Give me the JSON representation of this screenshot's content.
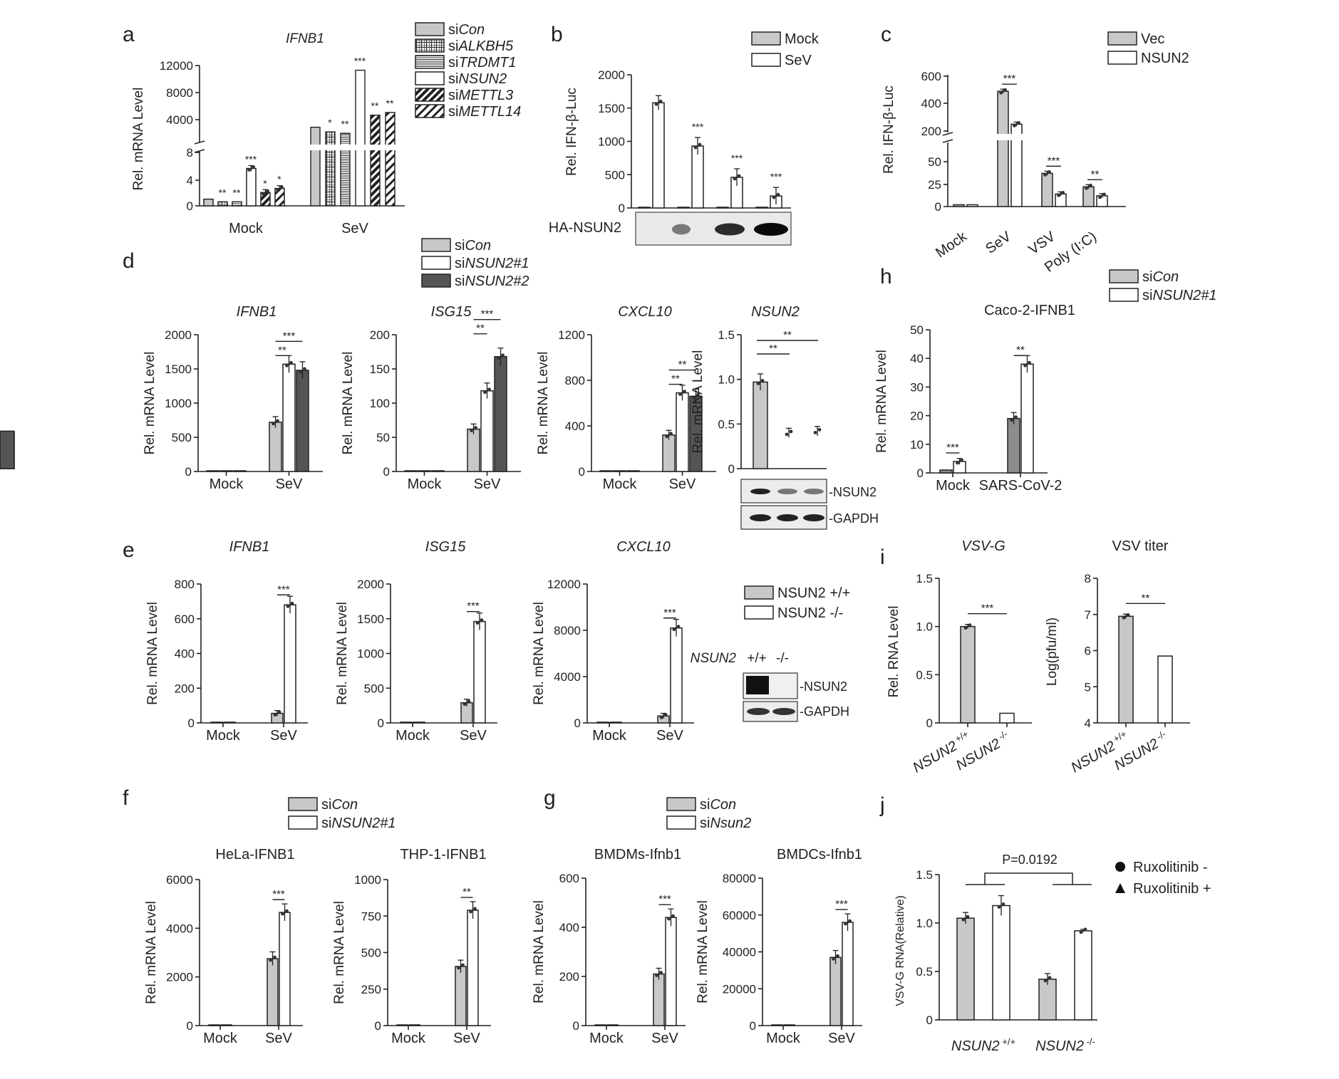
{
  "figure": {
    "panels": [
      "a",
      "b",
      "c",
      "d",
      "e",
      "f",
      "g",
      "h",
      "i",
      "j"
    ]
  },
  "chart_data": [
    {
      "id": "a",
      "type": "bar",
      "title": "IFNB1",
      "ylabel": "Rel. mRNA Level",
      "categories": [
        "Mock",
        "SeV"
      ],
      "broken_axis": true,
      "lower_ticks": [
        "0",
        "4",
        "8"
      ],
      "upper_ticks": [
        "4000",
        "8000",
        "12000"
      ],
      "legend": [
        "siCon",
        "siALKBH5",
        "siTRDMT1",
        "siNSUN2",
        "siMETTL3",
        "siMETTL14"
      ],
      "series": [
        {
          "name": "siCon",
          "values": [
            1,
            2800
          ]
        },
        {
          "name": "siALKBH5",
          "values": [
            0.6,
            2100
          ]
        },
        {
          "name": "siTRDMT1",
          "values": [
            0.6,
            1900
          ]
        },
        {
          "name": "siNSUN2",
          "values": [
            5.6,
            11300
          ]
        },
        {
          "name": "siMETTL3",
          "values": [
            2,
            4600
          ]
        },
        {
          "name": "siMETTL14",
          "values": [
            2.6,
            5000
          ]
        }
      ],
      "significance": [
        [
          "",
          "**",
          "**",
          "***",
          "*",
          "*"
        ],
        [
          "",
          "*",
          "**",
          "***",
          "**",
          "**"
        ]
      ]
    },
    {
      "id": "b",
      "type": "bar",
      "ylabel": "Rel. IFN-β-Luc",
      "ylim": [
        0,
        2000
      ],
      "ticks": [
        "0",
        "500",
        "1000",
        "1500",
        "2000"
      ],
      "legend": [
        "Mock",
        "SeV"
      ],
      "blot_label": "HA-NSUN2",
      "series": [
        {
          "name": "Mock",
          "values": [
            10,
            10,
            10,
            10
          ]
        },
        {
          "name": "SeV",
          "values": [
            1580,
            930,
            460,
            180
          ]
        }
      ],
      "significance": [
        "",
        "***",
        "***",
        "***"
      ]
    },
    {
      "id": "c",
      "type": "bar",
      "ylabel": "Rel. IFN-β-Luc",
      "broken_axis": true,
      "categories": [
        "Mock",
        "SeV",
        "VSV",
        "Poly (I:C)"
      ],
      "lower_ticks": [
        "0",
        "25",
        "50"
      ],
      "upper_ticks": [
        "200",
        "400",
        "600"
      ],
      "legend": [
        "Vec",
        "NSUN2"
      ],
      "series": [
        {
          "name": "Vec",
          "values": [
            2,
            490,
            37,
            22
          ]
        },
        {
          "name": "NSUN2",
          "values": [
            2,
            250,
            14,
            12
          ]
        }
      ],
      "significance": [
        "",
        "***",
        "***",
        "**"
      ]
    },
    {
      "id": "d",
      "type": "bar",
      "legend": [
        "siCon",
        "siNSUN2#1",
        "siNSUN2#2"
      ],
      "subplots": [
        {
          "title": "IFNB1",
          "ylabel": "Rel. mRNA Level",
          "categories": [
            "Mock",
            "SeV"
          ],
          "ylim": [
            0,
            2000
          ],
          "ticks": [
            "0",
            "500",
            "1000",
            "1500",
            "2000"
          ],
          "values": [
            [
              1,
              1,
              1
            ],
            [
              720,
              1570,
              1480
            ]
          ],
          "sig": [
            "**",
            "***"
          ]
        },
        {
          "title": "ISG15",
          "ylabel": "Rel. mRNA Level",
          "categories": [
            "Mock",
            "SeV"
          ],
          "ylim": [
            0,
            200
          ],
          "ticks": [
            "0",
            "50",
            "100",
            "150",
            "200"
          ],
          "values": [
            [
              1,
              1,
              1
            ],
            [
              62,
              118,
              168
            ]
          ],
          "sig": [
            "**",
            "***"
          ]
        },
        {
          "title": "CXCL10",
          "ylabel": "Rel. mRNA Level",
          "categories": [
            "Mock",
            "SeV"
          ],
          "ylim": [
            0,
            1200
          ],
          "ticks": [
            "0",
            "400",
            "800",
            "1200"
          ],
          "values": [
            [
              1,
              1,
              1
            ],
            [
              320,
              690,
              660
            ]
          ],
          "sig": [
            "**",
            "**"
          ]
        },
        {
          "title": "NSUN2",
          "ylabel": "Rel. mRNA Level",
          "categories": [],
          "ylim": [
            0,
            1.5
          ],
          "ticks": [
            "0",
            "0.5",
            "1.0",
            "1.5"
          ],
          "values": [
            [
              0.97,
              0.4,
              0.42
            ]
          ],
          "sig": [
            "**",
            "**"
          ],
          "blot": [
            "-NSUN2",
            "-GAPDH"
          ]
        }
      ]
    },
    {
      "id": "e",
      "type": "bar",
      "legend": [
        "NSUN2 +/+",
        "NSUN2 -/-"
      ],
      "blot_header": [
        "NSUN2",
        "+/+",
        "-/-"
      ],
      "blot": [
        "-NSUN2",
        "-GAPDH"
      ],
      "subplots": [
        {
          "title": "IFNB1",
          "ylabel": "Rel. mRNA Level",
          "categories": [
            "Mock",
            "SeV"
          ],
          "ylim": [
            0,
            800
          ],
          "ticks": [
            "0",
            "200",
            "400",
            "600",
            "800"
          ],
          "values": [
            [
              1,
              1
            ],
            [
              55,
              680
            ]
          ],
          "sig": [
            "***"
          ]
        },
        {
          "title": "ISG15",
          "ylabel": "Rel. mRNA Level",
          "categories": [
            "Mock",
            "SeV"
          ],
          "ylim": [
            0,
            2000
          ],
          "ticks": [
            "0",
            "500",
            "1000",
            "1500",
            "2000"
          ],
          "values": [
            [
              1,
              1
            ],
            [
              290,
              1460
            ]
          ],
          "sig": [
            "***"
          ]
        },
        {
          "title": "CXCL10",
          "ylabel": "Rel. mRNA Level",
          "categories": [
            "Mock",
            "SeV"
          ],
          "ylim": [
            0,
            12000
          ],
          "ticks": [
            "0",
            "4000",
            "8000",
            "12000"
          ],
          "values": [
            [
              1,
              1
            ],
            [
              600,
              8200
            ]
          ],
          "sig": [
            "***"
          ]
        }
      ]
    },
    {
      "id": "f",
      "type": "bar",
      "legend": [
        "siCon",
        "siNSUN2#1"
      ],
      "subplots": [
        {
          "title": "HeLa-IFNB1",
          "ylabel": "Rel. mRNA Level",
          "categories": [
            "Mock",
            "SeV"
          ],
          "ylim": [
            0,
            6000
          ],
          "ticks": [
            "0",
            "2000",
            "4000",
            "6000"
          ],
          "values": [
            [
              1,
              1
            ],
            [
              2750,
              4650
            ]
          ],
          "sig": [
            "***"
          ]
        },
        {
          "title": "THP-1-IFNB1",
          "ylabel": "Rel. mRNA Level",
          "categories": [
            "Mock",
            "SeV"
          ],
          "ylim": [
            0,
            1000
          ],
          "ticks": [
            "0",
            "250",
            "500",
            "750",
            "1000"
          ],
          "values": [
            [
              1,
              5
            ],
            [
              405,
              790
            ]
          ],
          "sig": [
            "**"
          ]
        }
      ]
    },
    {
      "id": "g",
      "type": "bar",
      "legend": [
        "siCon",
        "siNsun2"
      ],
      "subplots": [
        {
          "title": "BMDMs-Ifnb1",
          "ylabel": "Rel. mRNA Level",
          "categories": [
            "Mock",
            "SeV"
          ],
          "ylim": [
            0,
            600
          ],
          "ticks": [
            "0",
            "200",
            "400",
            "600"
          ],
          "values": [
            [
              1,
              1
            ],
            [
              210,
              440
            ]
          ],
          "sig": [
            "***"
          ]
        },
        {
          "title": "BMDCs-Ifnb1",
          "ylabel": "Rel. mRNA Level",
          "categories": [
            "Mock",
            "SeV"
          ],
          "ylim": [
            0,
            80000
          ],
          "ticks": [
            "0",
            "20000",
            "40000",
            "60000",
            "80000"
          ],
          "values": [
            [
              1,
              1
            ],
            [
              37000,
              56000
            ]
          ],
          "sig": [
            "***"
          ]
        }
      ]
    },
    {
      "id": "h",
      "type": "bar",
      "title": "Caco-2-IFNB1",
      "ylabel": "Rel. mRNA Level",
      "legend": [
        "siCon",
        "siNSUN2#1"
      ],
      "categories": [
        "Mock",
        "SARS-CoV-2"
      ],
      "ylim": [
        0,
        50
      ],
      "ticks": [
        "0",
        "10",
        "20",
        "30",
        "40",
        "50"
      ],
      "values": [
        [
          1,
          4
        ],
        [
          19,
          38
        ]
      ],
      "sig": [
        "***",
        "**"
      ]
    },
    {
      "id": "i",
      "type": "bar",
      "subplots": [
        {
          "title": "VSV-G",
          "ylabel": "Rel. RNA Level",
          "categories": [
            "NSUN2 +/+",
            "NSUN2 -/-"
          ],
          "ylim": [
            0,
            1.5
          ],
          "ticks": [
            "0",
            "0.5",
            "1.0",
            "1.5"
          ],
          "values": [
            1.0,
            0.1
          ],
          "sig": [
            "***"
          ]
        },
        {
          "title": "VSV titer",
          "ylabel": "Log(pfu/ml)",
          "categories": [
            "NSUN2 +/+",
            "NSUN2 -/-"
          ],
          "ylim": [
            4,
            8
          ],
          "ticks": [
            "4",
            "5",
            "6",
            "7",
            "8"
          ],
          "values": [
            6.95,
            5.85
          ],
          "sig": [
            "**"
          ]
        }
      ]
    },
    {
      "id": "j",
      "type": "bar",
      "ylabel": "VSV-G RNA(Relative)",
      "categories": [
        "NSUN2 +/+",
        "NSUN2 -/-"
      ],
      "ylim": [
        0,
        1.5
      ],
      "ticks": [
        "0",
        "0.5",
        "1.0",
        "1.5"
      ],
      "legend": [
        "Ruxolitinib -",
        "Ruxolitinib +"
      ],
      "pvalue": "P=0.0192",
      "series": [
        {
          "name": "Ruxolitinib -",
          "values": [
            1.05,
            0.42
          ]
        },
        {
          "name": "Ruxolitinib +",
          "values": [
            1.18,
            0.92
          ]
        }
      ]
    }
  ]
}
